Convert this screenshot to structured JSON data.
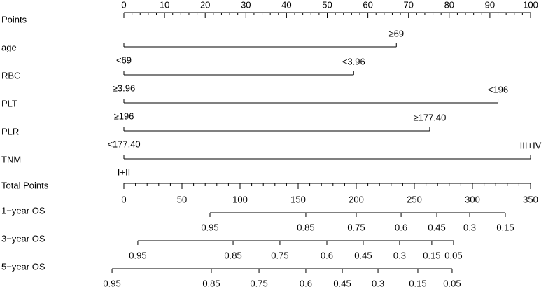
{
  "chart_data": {
    "type": "nomogram",
    "points_axis": {
      "label": "Points",
      "xlim": [
        0,
        100
      ],
      "xticks": [
        0,
        10,
        20,
        30,
        40,
        50,
        60,
        70,
        80,
        90,
        100
      ],
      "minor_ticks": [
        2,
        4,
        6,
        8,
        12,
        14,
        16,
        18,
        22,
        24,
        26,
        28,
        32,
        34,
        36,
        38,
        42,
        44,
        46,
        48,
        52,
        54,
        56,
        58,
        62,
        64,
        66,
        68,
        72,
        74,
        76,
        78,
        82,
        84,
        86,
        88,
        92,
        94,
        96,
        98
      ]
    },
    "variables": [
      {
        "name": "age",
        "levels": [
          {
            "label": "<69",
            "points": 0
          },
          {
            "label": "≥69",
            "points": 67
          }
        ]
      },
      {
        "name": "RBC",
        "levels": [
          {
            "label": "≥3.96",
            "points": 0
          },
          {
            "label": "<3.96",
            "points": 56.5
          }
        ]
      },
      {
        "name": "PLT",
        "levels": [
          {
            "label": "≥196",
            "points": 0
          },
          {
            "label": "<196",
            "points": 92
          }
        ]
      },
      {
        "name": "PLR",
        "levels": [
          {
            "label": "<177.40",
            "points": 0
          },
          {
            "label": "≥177.40",
            "points": 75.2
          }
        ]
      },
      {
        "name": "TNM",
        "levels": [
          {
            "label": "I+II",
            "points": 0
          },
          {
            "label": "III+IV",
            "points": 100
          }
        ]
      }
    ],
    "total_axis": {
      "label": "Total Points",
      "xlim": [
        0,
        350
      ],
      "xticks": [
        0,
        50,
        100,
        150,
        200,
        250,
        300,
        350
      ],
      "minor_ticks": [
        10,
        20,
        30,
        40,
        60,
        70,
        80,
        90,
        110,
        120,
        130,
        140,
        160,
        170,
        180,
        190,
        210,
        220,
        230,
        240,
        260,
        270,
        280,
        290,
        310,
        320,
        330,
        340
      ]
    },
    "outcomes": [
      {
        "name": "1−year OS",
        "ticks": [
          {
            "prob": 0.95,
            "points": 74.1
          },
          {
            "prob": 0.85,
            "points": 156.6
          },
          {
            "prob": 0.75,
            "points": 200
          },
          {
            "prob": 0.6,
            "points": 238.6
          },
          {
            "prob": 0.45,
            "points": 269.3
          },
          {
            "prob": 0.3,
            "points": 297.6
          },
          {
            "prob": 0.15,
            "points": 328.3
          }
        ]
      },
      {
        "name": "3−year OS",
        "ticks": [
          {
            "prob": 0.95,
            "points": 12
          },
          {
            "prob": 0.85,
            "points": 94
          },
          {
            "prob": 0.75,
            "points": 134.3
          },
          {
            "prob": 0.6,
            "points": 174.7
          },
          {
            "prob": 0.45,
            "points": 206
          },
          {
            "prob": 0.3,
            "points": 237.3
          },
          {
            "prob": 0.15,
            "points": 265
          },
          {
            "prob": 0.05,
            "points": 283.7
          }
        ]
      },
      {
        "name": "5−year OS",
        "ticks": [
          {
            "prob": 0.95,
            "points": -10.2
          },
          {
            "prob": 0.85,
            "points": 75.3
          },
          {
            "prob": 0.75,
            "points": 116.3
          },
          {
            "prob": 0.6,
            "points": 156.6
          },
          {
            "prob": 0.45,
            "points": 188
          },
          {
            "prob": 0.3,
            "points": 218.7
          },
          {
            "prob": 0.15,
            "points": 253
          },
          {
            "prob": 0.05,
            "points": 282.5
          }
        ]
      }
    ]
  }
}
